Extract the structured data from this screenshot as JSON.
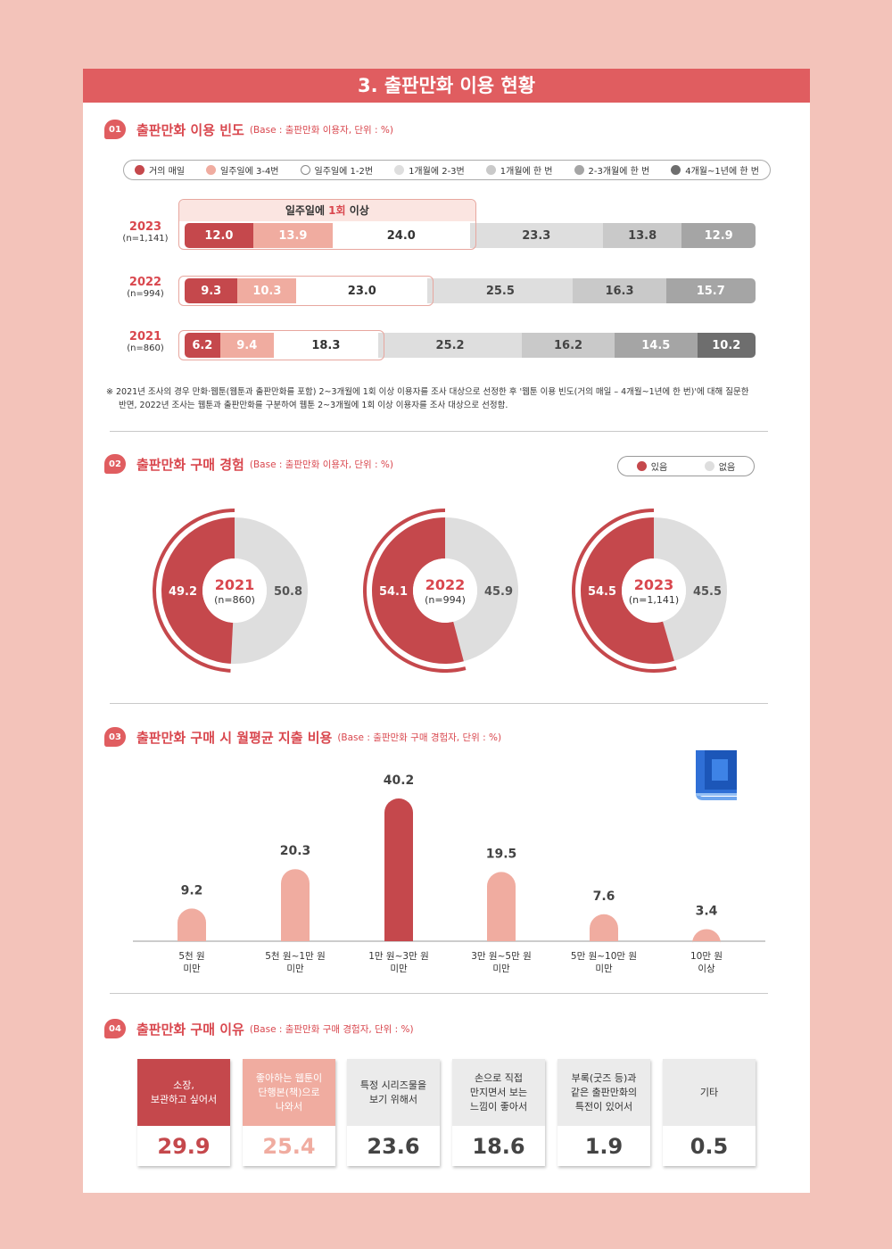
{
  "page_title": "3. 출판만화 이용 현황",
  "sections": [
    {
      "num": "01",
      "title": "출판만화 이용 빈도",
      "base": "(Base : 출판만화 이용자, 단위 : %)"
    },
    {
      "num": "02",
      "title": "출판만화 구매 경험",
      "base": "(Base : 출판만화 이용자, 단위 : %)"
    },
    {
      "num": "03",
      "title": "출판만화 구매 시 월평균 지출 비용",
      "base": "(Base : 출판만화 구매 경험자, 단위 : %)"
    },
    {
      "num": "04",
      "title": "출판만화 구매 이유",
      "base": "(Base : 출판만화 구매 경험자, 단위 : %)"
    }
  ],
  "colors": {
    "accent": "#e05d60",
    "c1": "#c5484c",
    "c2": "#f0aca0",
    "c3": "#ffffff",
    "c4": "#dedede",
    "c5": "#c9c9c9",
    "c6": "#a5a5a5",
    "c7": "#6e6e6e"
  },
  "chart_data": [
    {
      "type": "bar",
      "stacked": true,
      "orientation": "horizontal",
      "title": "출판만화 이용 빈도",
      "legend": [
        "거의 매일",
        "일주일에 3-4번",
        "일주일에 1-2번",
        "1개월에 2-3번",
        "1개월에 한 번",
        "2-3개월에 한 번",
        "4개월~1년에 한 번"
      ],
      "highlight_label_pre": "일주일에 ",
      "highlight_label_em": "1회",
      "highlight_label_post": " 이상",
      "rows": [
        {
          "year": "2023",
          "n": "(n=1,141)",
          "values": [
            12.0,
            13.9,
            24.0,
            23.3,
            13.8,
            12.9
          ],
          "labels": [
            "12.0",
            "13.9",
            "24.0",
            "23.3",
            "13.8",
            "12.9"
          ],
          "color_idx": [
            0,
            1,
            2,
            3,
            4,
            5
          ]
        },
        {
          "year": "2022",
          "n": "(n=994)",
          "values": [
            9.3,
            10.3,
            23.0,
            25.5,
            16.3,
            15.7
          ],
          "labels": [
            "9.3",
            "10.3",
            "23.0",
            "25.5",
            "16.3",
            "15.7"
          ],
          "color_idx": [
            0,
            1,
            2,
            3,
            4,
            5
          ]
        },
        {
          "year": "2021",
          "n": "(n=860)",
          "values": [
            6.2,
            9.4,
            18.3,
            25.2,
            16.2,
            14.5,
            10.2
          ],
          "labels": [
            "6.2",
            "9.4",
            "18.3",
            "25.2",
            "16.2",
            "14.5",
            "10.2"
          ],
          "color_idx": [
            0,
            1,
            2,
            3,
            4,
            5,
            6
          ]
        }
      ]
    },
    {
      "type": "pie",
      "title": "출판만화 구매 경험",
      "legend": [
        "있음",
        "없음"
      ],
      "donuts": [
        {
          "year": "2021",
          "n": "(n=860)",
          "yes": 49.2,
          "no": 50.8,
          "yes_label": "49.2",
          "no_label": "50.8"
        },
        {
          "year": "2022",
          "n": "(n=994)",
          "yes": 54.1,
          "no": 45.9,
          "yes_label": "54.1",
          "no_label": "45.9"
        },
        {
          "year": "2023",
          "n": "(n=1,141)",
          "yes": 54.5,
          "no": 45.5,
          "yes_label": "54.5",
          "no_label": "45.5"
        }
      ]
    },
    {
      "type": "bar",
      "title": "출판만화 구매 시 월평균 지출 비용",
      "categories": [
        [
          "5천 원",
          "미만"
        ],
        [
          "5천 원~1만 원",
          "미만"
        ],
        [
          "1만 원~3만 원",
          "미만"
        ],
        [
          "3만 원~5만 원",
          "미만"
        ],
        [
          "5만 원~10만 원",
          "미만"
        ],
        [
          "10만 원",
          "이상"
        ]
      ],
      "values": [
        9.2,
        20.3,
        40.2,
        19.5,
        7.6,
        3.4
      ],
      "labels": [
        "9.2",
        "20.3",
        "40.2",
        "19.5",
        "7.6",
        "3.4"
      ],
      "highlight_index": 2
    },
    {
      "type": "table",
      "title": "출판만화 구매 이유",
      "items": [
        {
          "label": [
            "소장,",
            "보관하고 싶어서"
          ],
          "value": "29.9",
          "style": "dark"
        },
        {
          "label": [
            "좋아하는 웹툰이",
            "단행본(책)으로",
            "나와서"
          ],
          "value": "25.4",
          "style": "light"
        },
        {
          "label": [
            "특정 시리즈물을",
            "보기 위해서"
          ],
          "value": "23.6",
          "style": "gray"
        },
        {
          "label": [
            "손으로 직접",
            "만지면서 보는",
            "느낌이 좋아서"
          ],
          "value": "18.6",
          "style": "gray"
        },
        {
          "label": [
            "부록(굿즈 등)과",
            "같은 출판만화의",
            "특전이 있어서"
          ],
          "value": "1.9",
          "style": "gray"
        },
        {
          "label": [
            "기타"
          ],
          "value": "0.5",
          "style": "gray"
        }
      ]
    }
  ],
  "note": [
    "※ 2021년 조사의 경우 만화·웹툰(웹툰과 출판만화를 포함) 2~3개월에 1회 이상 이용자를 조사 대상으로 선정한 후 '웹툰 이용 빈도(거의 매일 – 4개월~1년에 한 번)'에 대해 질문한",
    "반면, 2022년 조사는 웹툰과 출판만화를 구분하여 웹툰 2~3개월에 1회 이상 이용자를 조사 대상으로 선정함."
  ],
  "book_icon": "book-icon"
}
